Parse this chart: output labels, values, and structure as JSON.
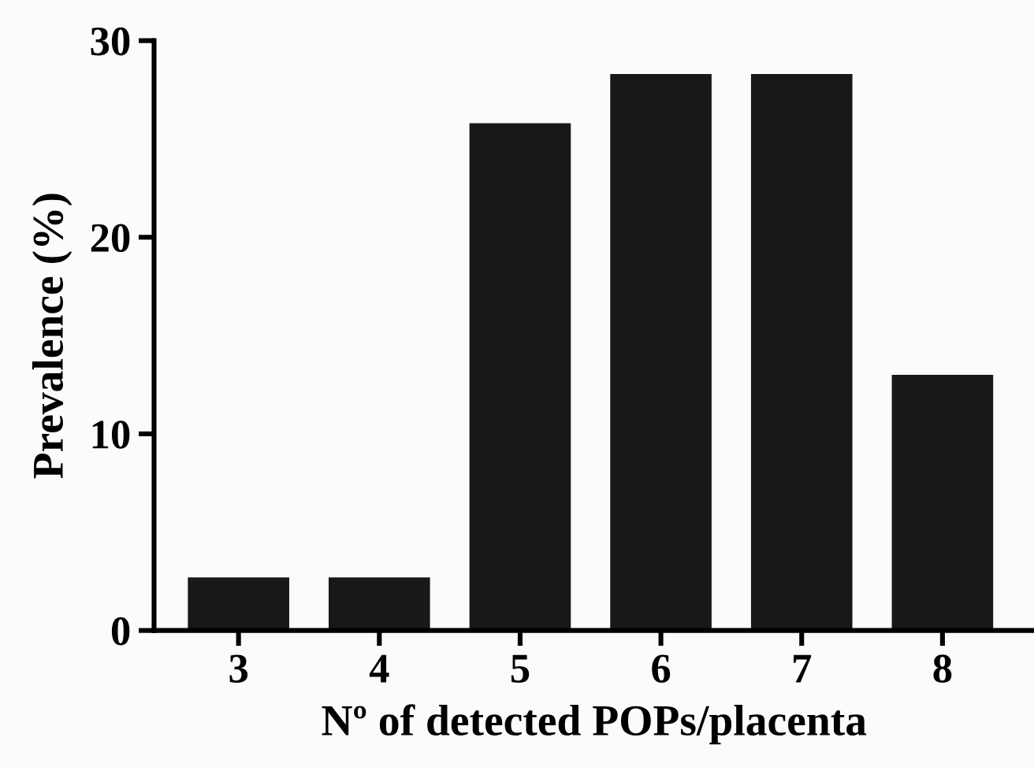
{
  "chart_data": {
    "type": "bar",
    "xlabel": "Nº of detected POPs/placenta",
    "ylabel": "Prevalence (%)",
    "categories": [
      "3",
      "4",
      "5",
      "6",
      "7",
      "8"
    ],
    "values": [
      2.7,
      2.7,
      25.8,
      28.3,
      28.3,
      13.0
    ],
    "color": "#181818",
    "ylim": [
      0,
      30
    ],
    "yticks": [
      0,
      10,
      20,
      30
    ],
    "grid": false
  }
}
